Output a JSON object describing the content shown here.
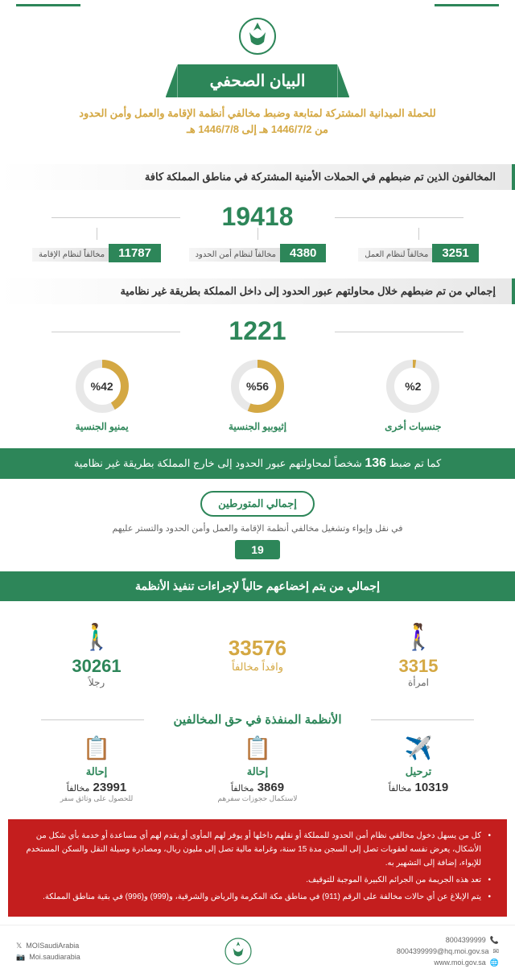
{
  "title": "البيان الصحفي",
  "subtitle": "للحملة الميدانية المشتركة لمتابعة وضبط مخالفي أنظمة الإقامة والعمل وأمن الحدود",
  "date_range": "من 1446/7/2 هـ إلى 1446/7/8 هـ",
  "section1": {
    "header": "المخالفون الذين تم ضبطهم في الحملات الأمنية المشتركة في مناطق المملكة كافة",
    "total": "19418",
    "items": [
      {
        "value": "11787",
        "label": "مخالفاً لنظام الإقامة"
      },
      {
        "value": "4380",
        "label": "مخالفاً لنظام أمن الحدود"
      },
      {
        "value": "3251",
        "label": "مخالفاً لنظام العمل"
      }
    ]
  },
  "section2": {
    "header": "إجمالي من تم ضبطهم خلال محاولتهم عبور الحدود إلى داخل المملكة بطريقة غير نظامية",
    "total": "1221",
    "pies": [
      {
        "pct": 42,
        "label": "يمنيو الجنسية",
        "color": "#d4a843"
      },
      {
        "pct": 56,
        "label": "إثيوبيو الجنسية",
        "color": "#d4a843"
      },
      {
        "pct": 2,
        "label": "جنسيات أخرى",
        "color": "#d4a843"
      }
    ]
  },
  "banner_exit": {
    "prefix": "كما تم ضبط",
    "num": "136",
    "suffix": "شخصاً لمحاولتهم عبور الحدود إلى خارج المملكة بطريقة غير نظامية"
  },
  "involved": {
    "title": "إجمالي المتورطين",
    "desc": "في نقل وإيواء وتشغيل مخالفي أنظمة الإقامة والعمل وأمن الحدود والتستر عليهم",
    "value": "19"
  },
  "enforcement": {
    "header": "إجمالي من يتم إخضاعهم حالياً لإجراءات تنفيذ الأنظمة",
    "male": {
      "value": "30261",
      "label": "رجلاً"
    },
    "total": {
      "value": "33576",
      "label": "وافداً مخالفاً"
    },
    "female": {
      "value": "3315",
      "label": "امرأة"
    }
  },
  "actions": {
    "title": "الأنظمة المنفذة في حق المخالفين",
    "items": [
      {
        "title": "إحالة",
        "value": "23991",
        "unit": "مخالفاً",
        "sub": "للحصول على وثائق سفر"
      },
      {
        "title": "إحالة",
        "value": "3869",
        "unit": "مخالفاً",
        "sub": "لاستكمال حجوزات سفرهم"
      },
      {
        "title": "ترحيل",
        "value": "10319",
        "unit": "مخالفاً",
        "sub": ""
      }
    ]
  },
  "warnings": [
    "كل من يسهل دخول مخالفي نظام أمن الحدود للمملكة أو نقلهم داخلها أو يوفر لهم المأوى أو يقدم لهم أي مساعدة أو خدمة بأي شكل من الأشكال، يعرض نفسه لعقوبات تصل إلى السجن مدة 15 سنة، وغرامة مالية تصل إلى مليون ريال، ومصادرة وسيلة النقل والسكن المستخدم للإيواء، إضافة إلى التشهير به.",
    "تعد هذه الجريمة من الجرائم الكبيرة الموجبة للتوقيف.",
    "يتم الإبلاغ عن أي حالات مخالفة على الرقم (911) في مناطق مكة المكرمة والرياض والشرقية، و(999) و(996) في بقية مناطق المملكة."
  ],
  "footer": {
    "left": [
      {
        "icon": "𝕏",
        "text": "MOISaudiArabia"
      },
      {
        "icon": "📷",
        "text": "Moi.saudiarabia"
      }
    ],
    "right": [
      {
        "icon": "📞",
        "text": "8004399999"
      },
      {
        "icon": "✉",
        "text": "8004399999@hq.moi.gov.sa"
      },
      {
        "icon": "🌐",
        "text": "www.moi.gov.sa"
      }
    ]
  },
  "colors": {
    "primary": "#2d8659",
    "accent": "#d4a843",
    "danger": "#c41e1e"
  }
}
